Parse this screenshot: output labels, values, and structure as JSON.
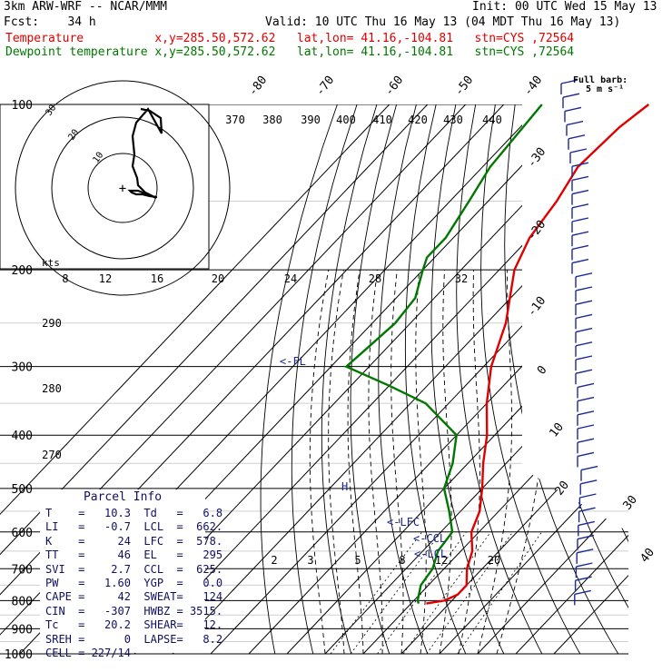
{
  "header": {
    "model": "3km ARW-WRF -- NCAR/MMM",
    "init": "Init: 00 UTC Wed 15 May 13",
    "fcst": "Fcst:    34 h",
    "valid": "Valid: 10 UTC Thu 16 May 13 (04 MDT Thu 16 May 13)",
    "temp_line": "Temperature          x,y=285.50,572.62   lat,lon= 41.16,-104.81   stn=CYS ,72564",
    "dew_line": "Dewpoint temperature x,y=285.50,572.62   lat,lon= 41.16,-104.81   stn=CYS ,72564"
  },
  "barb_legend": {
    "title": "Full barb:",
    "unit": "5 m s⁻¹"
  },
  "parcel": {
    "title": "Parcel Info",
    "rows": [
      {
        "a": "T",
        "av": "10.3",
        "b": "Td",
        "bv": "6.8"
      },
      {
        "a": "LI",
        "av": "-0.7",
        "b": "LCL",
        "bv": "662."
      },
      {
        "a": "K",
        "av": "24",
        "b": "LFC",
        "bv": "578."
      },
      {
        "a": "TT",
        "av": "46",
        "b": "EL",
        "bv": "295"
      },
      {
        "a": "SVI",
        "av": "2.7",
        "b": "CCL",
        "bv": "625."
      },
      {
        "a": "PW",
        "av": "1.60",
        "b": "YGP",
        "bv": "0.0"
      },
      {
        "a": "CAPE",
        "av": "42",
        "b": "SWEAT",
        "bv": "124"
      },
      {
        "a": "CIN",
        "av": "-307",
        "b": "HWBZ",
        "bv": "3515."
      },
      {
        "a": "Tc",
        "av": "20.2",
        "b": "SHEAR",
        "bv": "12."
      },
      {
        "a": "SREH",
        "av": "0",
        "b": "LAPSE",
        "bv": "8.2"
      }
    ],
    "cell": "CELL = 227/14"
  },
  "levels_labels": {
    "fl": "<-FL",
    "lfc": "<-LFC",
    "ccl": "<-CCL",
    "lcl": "<-LCL",
    "el": "H",
    "kts": "kts"
  },
  "chart_data": {
    "type": "line",
    "title": "",
    "pressure_levels": [
      100,
      200,
      300,
      400,
      500,
      600,
      700,
      800,
      900,
      1000
    ],
    "temperature_isotherm_labels": [
      -80,
      -70,
      -60,
      -50,
      -40,
      -30,
      -20,
      -10,
      0,
      10,
      20,
      30,
      40
    ],
    "theta_e_labels": [
      370,
      380,
      390,
      400,
      410,
      420,
      430,
      440,
      290,
      280,
      270
    ],
    "mixing_ratio_labels": [
      2,
      3,
      5,
      8,
      12,
      20
    ],
    "hodograph_ring_labels": [
      8,
      12,
      16,
      20,
      24,
      28,
      32
    ],
    "hodograph_circle_labels": [
      "10",
      "20",
      "30"
    ],
    "series": [
      {
        "name": "Temperature",
        "color": "#e00000",
        "points_p_t": [
          [
            100,
            -62
          ],
          [
            110,
            -64
          ],
          [
            130,
            -65
          ],
          [
            150,
            -62
          ],
          [
            175,
            -60
          ],
          [
            200,
            -56
          ],
          [
            250,
            -45
          ],
          [
            300,
            -38
          ],
          [
            350,
            -30
          ],
          [
            400,
            -22
          ],
          [
            450,
            -16
          ],
          [
            500,
            -10
          ],
          [
            550,
            -5
          ],
          [
            600,
            -2
          ],
          [
            650,
            3
          ],
          [
            700,
            6
          ],
          [
            750,
            10
          ],
          [
            780,
            10
          ],
          [
            800,
            8
          ],
          [
            810,
            4
          ]
        ]
      },
      {
        "name": "Dewpoint temperature",
        "color": "#007800",
        "points_p_t": [
          [
            100,
            -90
          ],
          [
            130,
            -88
          ],
          [
            150,
            -85
          ],
          [
            175,
            -82
          ],
          [
            190,
            -82
          ],
          [
            200,
            -80
          ],
          [
            225,
            -75
          ],
          [
            250,
            -74
          ],
          [
            275,
            -75
          ],
          [
            300,
            -76
          ],
          [
            325,
            -60
          ],
          [
            350,
            -46
          ],
          [
            400,
            -30
          ],
          [
            450,
            -24
          ],
          [
            500,
            -20
          ],
          [
            550,
            -13
          ],
          [
            600,
            -7
          ],
          [
            650,
            -6
          ],
          [
            700,
            -3
          ],
          [
            750,
            -2
          ],
          [
            800,
            1
          ],
          [
            810,
            2
          ]
        ]
      }
    ],
    "colors": {
      "isobar": "#000000",
      "grid": "#000000",
      "barbs": "#1c2896",
      "ml_text": "#000000"
    }
  }
}
